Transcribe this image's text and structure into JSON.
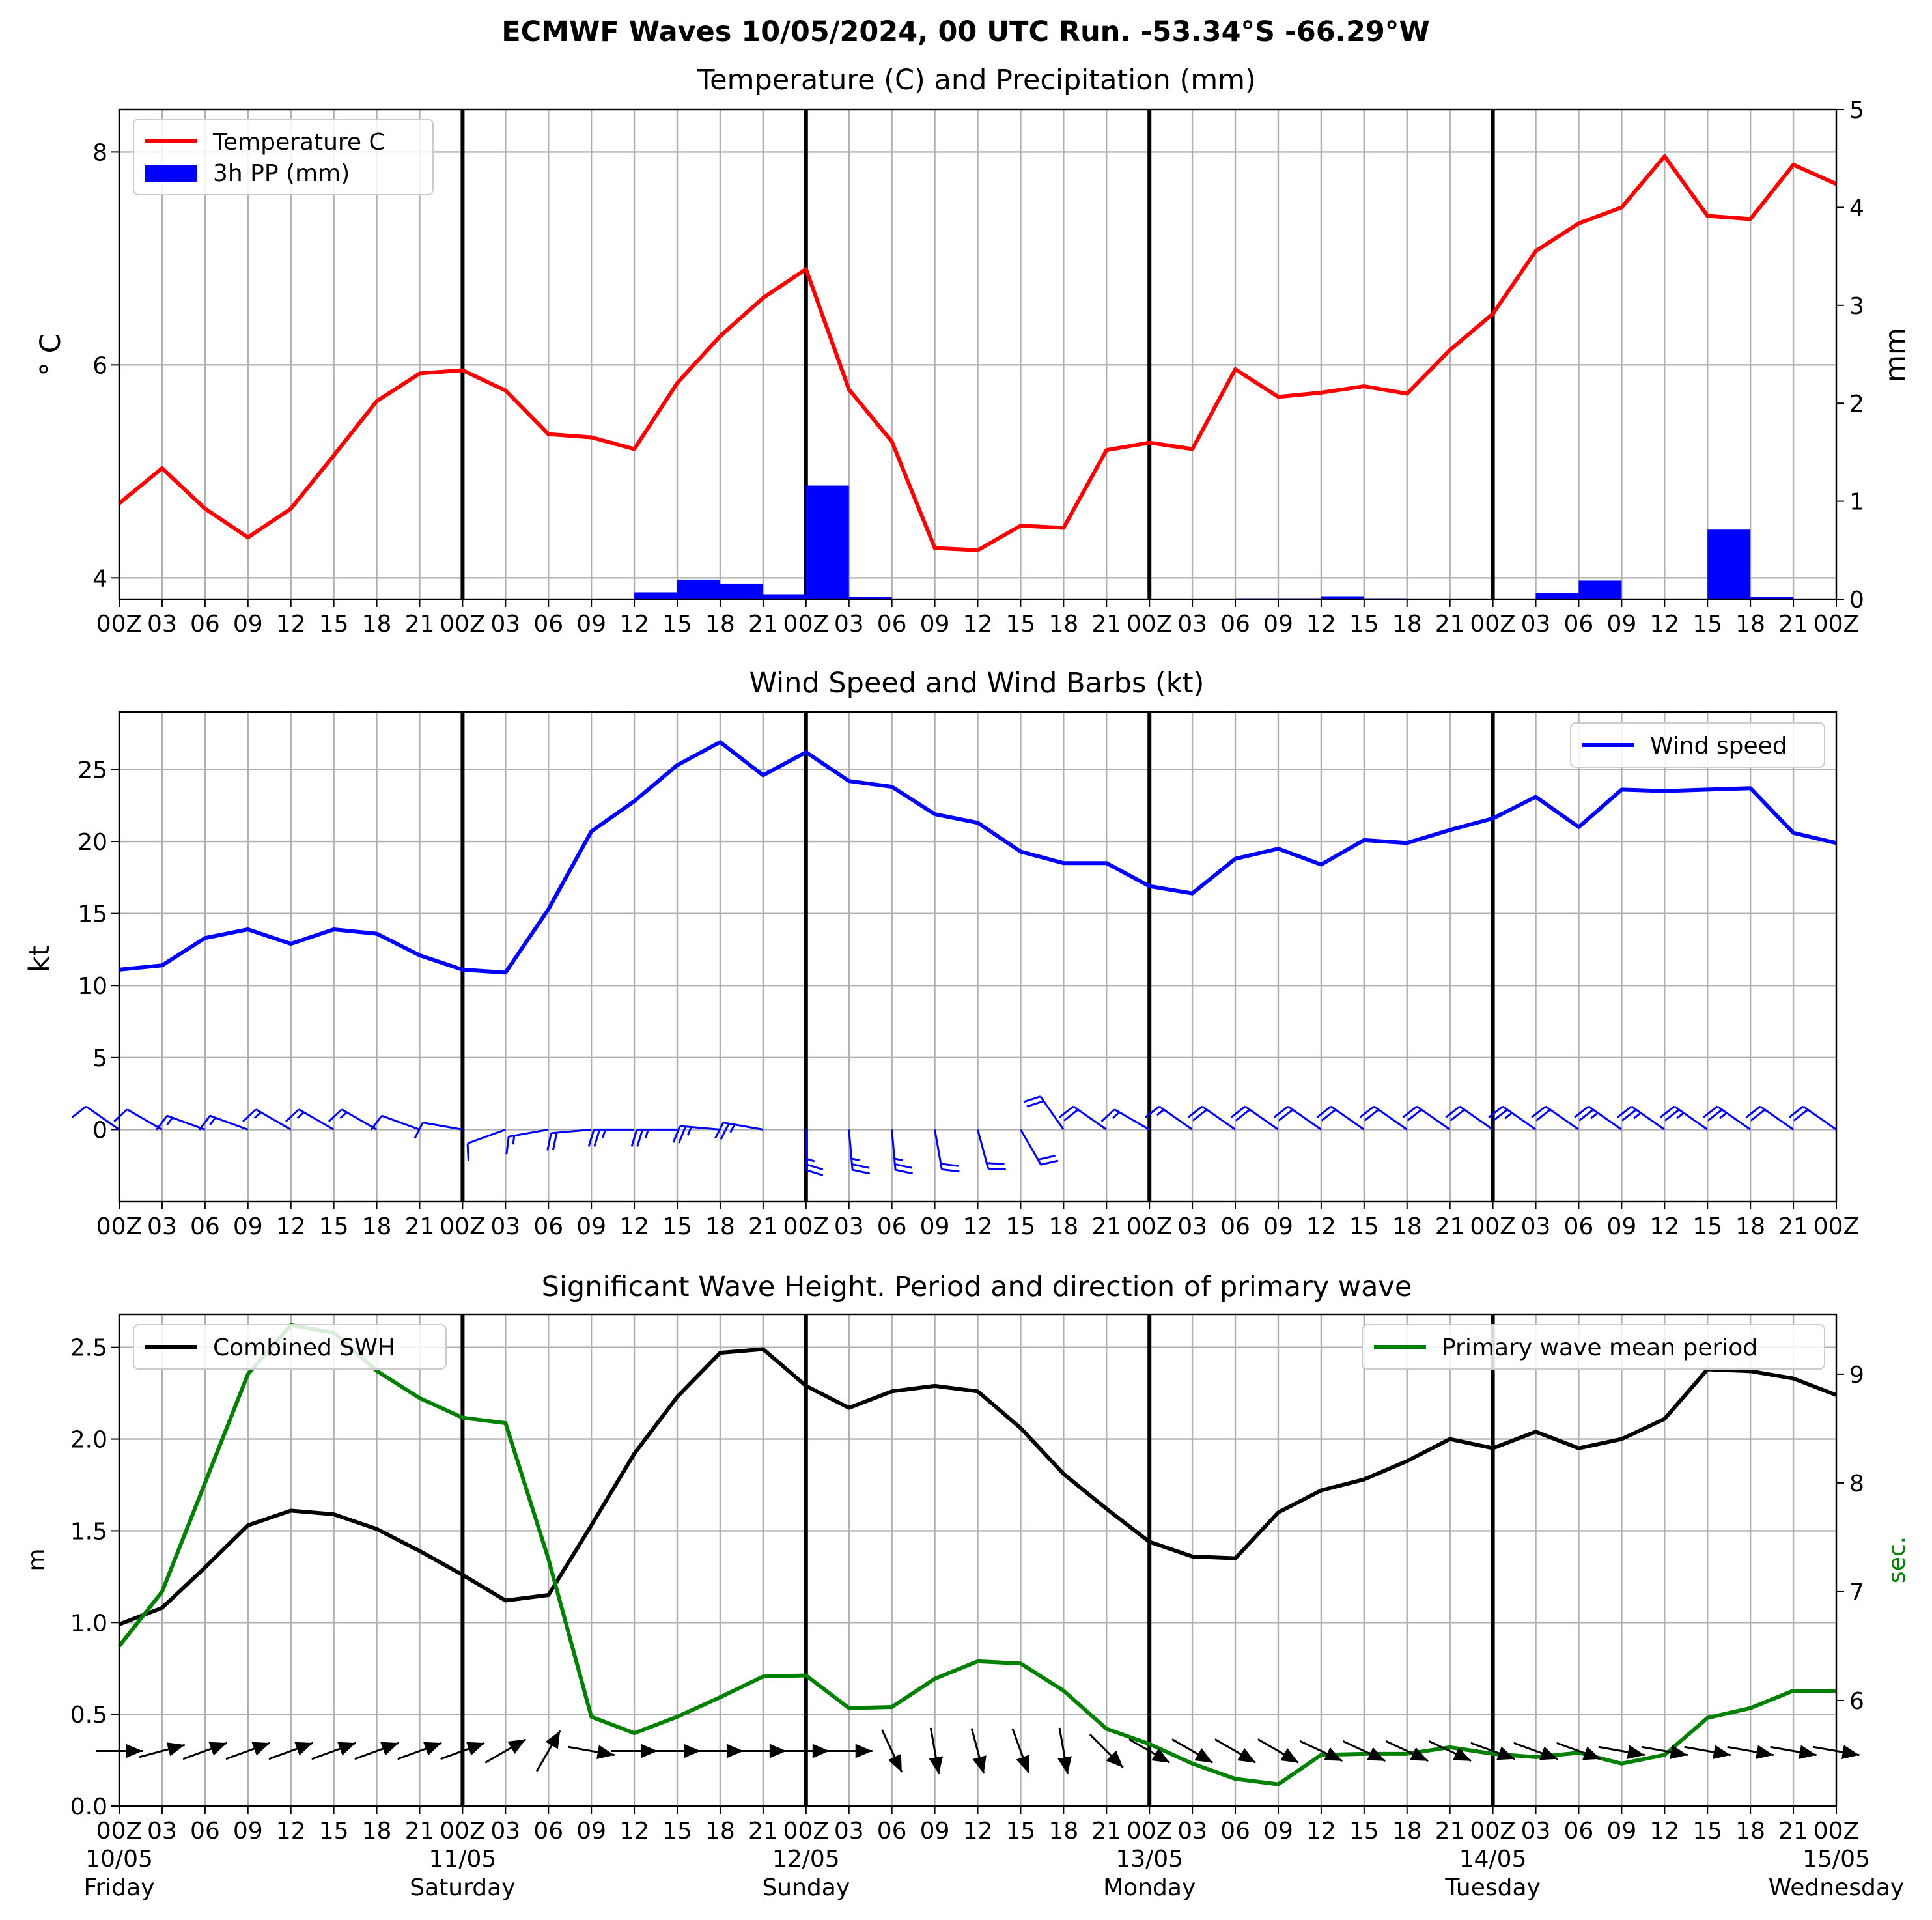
{
  "page": {
    "suptitle": "ECMWF Waves 10/05/2024, 00 UTC Run. -53.34°S -66.29°W"
  },
  "x_axis": {
    "hour_ticks": [
      "00Z",
      "03",
      "06",
      "09",
      "12",
      "15",
      "18",
      "21",
      "00Z",
      "03",
      "06",
      "09",
      "12",
      "15",
      "18",
      "21",
      "00Z",
      "03",
      "06",
      "09",
      "12",
      "15",
      "18",
      "21",
      "00Z",
      "03",
      "06",
      "09",
      "12",
      "15",
      "18",
      "21",
      "00Z",
      "03",
      "06",
      "09",
      "12",
      "15",
      "18",
      "21",
      "00Z"
    ],
    "day_labels": [
      {
        "date": "10/05",
        "day": "Friday"
      },
      {
        "date": "11/05",
        "day": "Saturday"
      },
      {
        "date": "12/05",
        "day": "Sunday"
      },
      {
        "date": "13/05",
        "day": "Monday"
      },
      {
        "date": "14/05",
        "day": "Tuesday"
      },
      {
        "date": "15/05",
        "day": "Wednesday"
      }
    ]
  },
  "colors": {
    "temperature": "#ff0000",
    "precip": "#0000ff",
    "wind": "#0000ff",
    "swh": "#000000",
    "period": "#008000",
    "grid": "#b0b0b0"
  },
  "chart_data": [
    {
      "type": "line",
      "title": "Temperature (C) and Precipitation (mm)",
      "x_hours": [
        0,
        3,
        6,
        9,
        12,
        15,
        18,
        21,
        24,
        27,
        30,
        33,
        36,
        39,
        42,
        45,
        48,
        51,
        54,
        57,
        60,
        63,
        66,
        69,
        72,
        75,
        78,
        81,
        84,
        87,
        90,
        93,
        96,
        99,
        102,
        105,
        108,
        111,
        114,
        117,
        120
      ],
      "ylabel": "° C",
      "ylabel_right": "mm",
      "ylim": [
        3.8,
        8.4
      ],
      "ylim_right": [
        0,
        5
      ],
      "yticks": [
        4,
        6,
        8
      ],
      "yticks_right": [
        0,
        1,
        2,
        3,
        4,
        5
      ],
      "grid": true,
      "legend": "upper-left",
      "series": [
        {
          "name": "Temperature C",
          "type": "line",
          "values": [
            4.7,
            5.03,
            4.65,
            4.38,
            4.65,
            5.15,
            5.66,
            5.92,
            5.95,
            5.76,
            5.35,
            5.32,
            5.21,
            5.83,
            6.27,
            6.63,
            6.9,
            5.77,
            5.28,
            4.28,
            4.26,
            4.49,
            4.47,
            5.2,
            5.27,
            5.21,
            5.96,
            5.7,
            5.74,
            5.8,
            5.73,
            6.14,
            6.48,
            7.07,
            7.33,
            7.48,
            7.96,
            7.4,
            7.37,
            7.88,
            7.7
          ]
        },
        {
          "name": "3h PP (mm)",
          "type": "bar",
          "values": [
            0,
            0,
            0,
            0,
            0,
            0,
            0,
            0,
            0,
            0,
            0,
            0,
            0.07,
            0.2,
            0.16,
            0.05,
            1.16,
            0.02,
            0,
            0,
            0,
            0,
            0,
            0,
            0,
            0,
            0.01,
            0.01,
            0.03,
            0.01,
            0,
            0,
            0,
            0.06,
            0.19,
            0,
            0,
            0.71,
            0.02,
            0
          ]
        }
      ]
    },
    {
      "type": "line",
      "title": "Wind Speed and Wind Barbs (kt)",
      "x_hours": [
        0,
        3,
        6,
        9,
        12,
        15,
        18,
        21,
        24,
        27,
        30,
        33,
        36,
        39,
        42,
        45,
        48,
        51,
        54,
        57,
        60,
        63,
        66,
        69,
        72,
        75,
        78,
        81,
        84,
        87,
        90,
        93,
        96,
        99,
        102,
        105,
        108,
        111,
        114,
        117,
        120
      ],
      "ylabel": "kt",
      "ylim": [
        -5,
        29
      ],
      "yticks": [
        0,
        5,
        10,
        15,
        20,
        25
      ],
      "grid": true,
      "legend": "upper-right",
      "series": [
        {
          "name": "Wind speed",
          "values": [
            11.1,
            11.4,
            13.3,
            13.9,
            12.9,
            13.9,
            13.6,
            12.1,
            11.1,
            10.9,
            15.3,
            20.7,
            22.8,
            25.3,
            26.9,
            24.6,
            26.2,
            24.2,
            23.8,
            21.9,
            21.3,
            19.3,
            18.5,
            18.5,
            16.9,
            16.4,
            18.8,
            19.5,
            18.4,
            20.1,
            19.9,
            20.8,
            21.6,
            23.1,
            21.0,
            23.6,
            23.5,
            23.6,
            23.7,
            20.6,
            19.9
          ]
        }
      ],
      "barbs_dir_deg": [
        235,
        240,
        250,
        250,
        240,
        240,
        240,
        250,
        260,
        290,
        280,
        275,
        270,
        270,
        265,
        260,
        0,
        5,
        5,
        10,
        15,
        30,
        215,
        235,
        240,
        235,
        235,
        235,
        235,
        235,
        235,
        235,
        235,
        235,
        235,
        235,
        235,
        235,
        235,
        235,
        235
      ]
    },
    {
      "type": "line",
      "title": "Significant Wave Height. Period and direction of primary wave",
      "x_hours": [
        0,
        3,
        6,
        9,
        12,
        15,
        18,
        21,
        24,
        27,
        30,
        33,
        36,
        39,
        42,
        45,
        48,
        51,
        54,
        57,
        60,
        63,
        66,
        69,
        72,
        75,
        78,
        81,
        84,
        87,
        90,
        93,
        96,
        99,
        102,
        105,
        108,
        111,
        114,
        117,
        120
      ],
      "ylabel": "m",
      "ylabel_right": "sec.",
      "ylim": [
        0,
        2.68
      ],
      "ylim_right": [
        5.03,
        9.55
      ],
      "yticks": [
        0.0,
        0.5,
        1.0,
        1.5,
        2.0,
        2.5
      ],
      "yticks_right": [
        6,
        7,
        8,
        9
      ],
      "grid": true,
      "series": [
        {
          "name": "Combined SWH",
          "axis": "left",
          "values": [
            0.99,
            1.08,
            1.3,
            1.53,
            1.61,
            1.59,
            1.51,
            1.39,
            1.26,
            1.12,
            1.15,
            1.53,
            1.92,
            2.23,
            2.47,
            2.49,
            2.29,
            2.17,
            2.26,
            2.29,
            2.26,
            2.06,
            1.81,
            1.62,
            1.44,
            1.36,
            1.35,
            1.6,
            1.72,
            1.78,
            1.88,
            2.0,
            1.95,
            2.04,
            1.95,
            2.0,
            2.11,
            2.38,
            2.37,
            2.33,
            2.24
          ]
        },
        {
          "name": "Primary wave mean period",
          "axis": "right",
          "values": [
            6.5,
            7.0,
            8.0,
            9.0,
            9.45,
            9.38,
            9.03,
            8.78,
            8.6,
            8.55,
            7.3,
            5.85,
            5.7,
            5.85,
            6.03,
            6.22,
            6.23,
            5.93,
            5.94,
            6.2,
            6.36,
            6.34,
            6.09,
            5.74,
            5.6,
            5.42,
            5.28,
            5.23,
            5.5,
            5.51,
            5.51,
            5.57,
            5.51,
            5.48,
            5.52,
            5.42,
            5.5,
            5.84,
            5.93,
            6.09,
            6.09
          ]
        }
      ],
      "wave_dir_deg": [
        90,
        75,
        70,
        70,
        70,
        70,
        70,
        70,
        70,
        60,
        30,
        100,
        90,
        90,
        90,
        90,
        90,
        90,
        155,
        170,
        165,
        160,
        170,
        135,
        120,
        120,
        120,
        120,
        115,
        115,
        115,
        115,
        110,
        110,
        110,
        100,
        100,
        100,
        100,
        100,
        100
      ]
    }
  ]
}
